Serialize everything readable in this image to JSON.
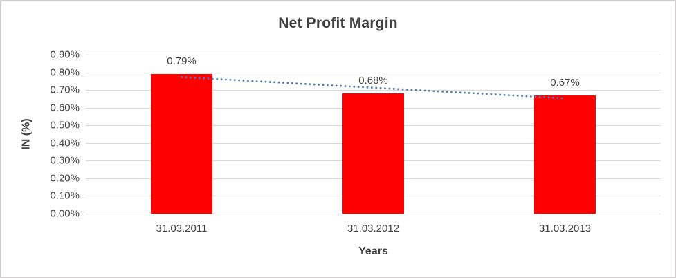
{
  "frame": {
    "background": "#ffffff",
    "border_color": "#d0cece"
  },
  "chart_data": {
    "type": "bar",
    "title": "Net Profit Margin",
    "xlabel": "Years",
    "ylabel": "IN (%)",
    "categories": [
      "31.03.2011",
      "31.03.2012",
      "31.03.2013"
    ],
    "values": [
      0.79,
      0.68,
      0.67
    ],
    "value_labels": [
      "0.79%",
      "0.68%",
      "0.67%"
    ],
    "ylim": [
      0.0,
      0.9
    ],
    "yticks": [
      {
        "value": 0.0,
        "label": "0.00%"
      },
      {
        "value": 0.1,
        "label": "0.10%"
      },
      {
        "value": 0.2,
        "label": "0.20%"
      },
      {
        "value": 0.3,
        "label": "0.30%"
      },
      {
        "value": 0.4,
        "label": "0.40%"
      },
      {
        "value": 0.5,
        "label": "0.50%"
      },
      {
        "value": 0.6,
        "label": "0.60%"
      },
      {
        "value": 0.7,
        "label": "0.70%"
      },
      {
        "value": 0.8,
        "label": "0.80%"
      },
      {
        "value": 0.9,
        "label": "0.90%"
      }
    ],
    "grid": true,
    "legend": "none",
    "bar_color": "#ff0000",
    "gridline_color": "#d9d9d9",
    "trendline": {
      "type": "linear",
      "style": "dotted",
      "color": "#4a7ebb",
      "start_value": 0.773,
      "end_value": 0.653
    }
  }
}
